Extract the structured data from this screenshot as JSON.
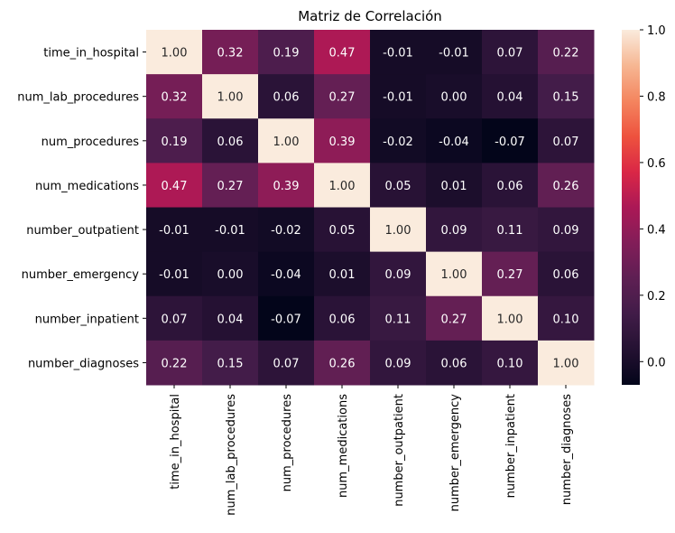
{
  "chart_data": {
    "type": "heatmap",
    "title": "Matriz de Correlación",
    "xlabel": "",
    "ylabel": "",
    "row_labels": [
      "time_in_hospital",
      "num_lab_procedures",
      "num_procedures",
      "num_medications",
      "number_outpatient",
      "number_emergency",
      "number_inpatient",
      "number_diagnoses"
    ],
    "col_labels": [
      "time_in_hospital",
      "num_lab_procedures",
      "num_procedures",
      "num_medications",
      "number_outpatient",
      "number_emergency",
      "number_inpatient",
      "number_diagnoses"
    ],
    "values": [
      [
        1.0,
        0.32,
        0.19,
        0.47,
        -0.01,
        -0.01,
        0.07,
        0.22
      ],
      [
        0.32,
        1.0,
        0.06,
        0.27,
        -0.01,
        -0.0,
        0.04,
        0.15
      ],
      [
        0.19,
        0.06,
        1.0,
        0.39,
        -0.02,
        -0.04,
        -0.07,
        0.07
      ],
      [
        0.47,
        0.27,
        0.39,
        1.0,
        0.05,
        0.01,
        0.06,
        0.26
      ],
      [
        -0.01,
        -0.01,
        -0.02,
        0.05,
        1.0,
        0.09,
        0.11,
        0.09
      ],
      [
        -0.01,
        -0.0,
        -0.04,
        0.01,
        0.09,
        1.0,
        0.27,
        0.06
      ],
      [
        0.07,
        0.04,
        -0.07,
        0.06,
        0.11,
        0.27,
        1.0,
        0.1
      ],
      [
        0.22,
        0.15,
        0.07,
        0.26,
        0.09,
        0.06,
        0.1,
        1.0
      ]
    ],
    "value_format": "0.00",
    "colormap": "rocket",
    "color_range": [
      -0.07,
      1.0
    ],
    "colorbar": {
      "ticks": [
        "0.0",
        "0.2",
        "0.4",
        "0.6",
        "0.8",
        "1.0"
      ],
      "tick_values": [
        0.0,
        0.2,
        0.4,
        0.6,
        0.8,
        1.0
      ],
      "placement": "right"
    },
    "grid": false
  }
}
